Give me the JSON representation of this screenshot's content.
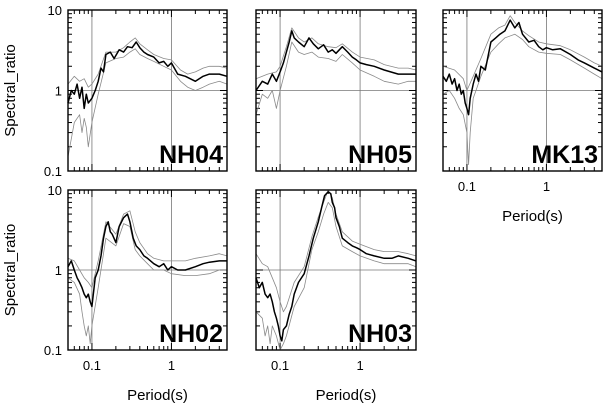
{
  "chart_data": [
    {
      "type": "line",
      "scale": "log-log",
      "station": "NH04",
      "xlabel": "",
      "ylabel": "Spectral_ratio",
      "xlim": [
        0.05,
        5
      ],
      "ylim": [
        0.1,
        10
      ],
      "xticks": [],
      "yticks": [
        "0.1",
        "1",
        "10"
      ],
      "grid": true,
      "series": [
        {
          "role": "mean",
          "x": [
            0.05,
            0.055,
            0.06,
            0.065,
            0.07,
            0.075,
            0.08,
            0.085,
            0.09,
            0.1,
            0.11,
            0.12,
            0.13,
            0.14,
            0.15,
            0.17,
            0.19,
            0.22,
            0.25,
            0.28,
            0.32,
            0.36,
            0.4,
            0.45,
            0.5,
            0.6,
            0.7,
            0.8,
            0.9,
            1.0,
            1.2,
            1.5,
            2.0,
            2.5,
            3.0,
            4.0,
            5.0
          ],
          "y": [
            0.7,
            1.0,
            0.9,
            1.2,
            0.8,
            1.1,
            0.6,
            0.9,
            0.7,
            0.8,
            1.0,
            1.3,
            1.9,
            1.7,
            2.8,
            3.0,
            2.5,
            3.2,
            3.0,
            3.5,
            3.4,
            4.0,
            3.4,
            3.0,
            2.8,
            2.6,
            2.2,
            2.3,
            2.0,
            2.2,
            1.6,
            1.5,
            1.3,
            1.5,
            1.6,
            1.6,
            1.5
          ]
        },
        {
          "role": "upper",
          "x": [
            0.05,
            0.06,
            0.07,
            0.08,
            0.09,
            0.1,
            0.12,
            0.15,
            0.2,
            0.25,
            0.3,
            0.35,
            0.4,
            0.5,
            0.6,
            0.8,
            1.0,
            1.3,
            1.6,
            2.0,
            2.5,
            3.0,
            4.0,
            5.0
          ],
          "y": [
            1.2,
            1.5,
            1.3,
            1.4,
            1.1,
            1.2,
            1.6,
            3.0,
            3.0,
            3.4,
            4.0,
            4.5,
            3.8,
            3.2,
            2.8,
            2.5,
            2.4,
            1.8,
            1.6,
            1.7,
            1.9,
            2.0,
            2.0,
            1.9
          ]
        },
        {
          "role": "lower",
          "x": [
            0.05,
            0.06,
            0.07,
            0.075,
            0.08,
            0.085,
            0.09,
            0.1,
            0.12,
            0.15,
            0.2,
            0.25,
            0.3,
            0.35,
            0.4,
            0.5,
            0.6,
            0.8,
            1.0,
            1.3,
            1.6,
            2.0,
            2.5,
            3.0,
            4.0,
            5.0
          ],
          "y": [
            0.15,
            0.4,
            0.5,
            0.3,
            0.45,
            0.35,
            0.2,
            0.4,
            0.9,
            2.2,
            2.5,
            2.6,
            3.0,
            3.3,
            2.8,
            2.5,
            2.3,
            2.0,
            1.8,
            1.3,
            1.1,
            1.0,
            1.1,
            1.2,
            1.3,
            1.2
          ]
        }
      ]
    },
    {
      "type": "line",
      "scale": "log-log",
      "station": "NH05",
      "xlabel": "",
      "ylabel": "",
      "xlim": [
        0.05,
        5
      ],
      "ylim": [
        0.1,
        10
      ],
      "xticks": [],
      "yticks": [],
      "grid": true,
      "series": [
        {
          "role": "mean",
          "x": [
            0.05,
            0.06,
            0.07,
            0.08,
            0.09,
            0.1,
            0.11,
            0.12,
            0.13,
            0.14,
            0.15,
            0.17,
            0.2,
            0.23,
            0.26,
            0.3,
            0.35,
            0.4,
            0.45,
            0.5,
            0.6,
            0.7,
            0.8,
            0.9,
            1.0,
            1.2,
            1.5,
            2.0,
            3.0,
            4.0,
            5.0
          ],
          "y": [
            1.0,
            1.3,
            1.2,
            1.6,
            1.3,
            1.7,
            2.2,
            3.0,
            4.0,
            5.5,
            4.5,
            4.0,
            3.5,
            4.5,
            3.8,
            3.3,
            3.7,
            3.0,
            3.2,
            2.9,
            3.5,
            3.0,
            2.6,
            2.4,
            2.2,
            2.1,
            2.0,
            1.8,
            1.6,
            1.6,
            1.6
          ]
        },
        {
          "role": "upper",
          "x": [
            0.05,
            0.07,
            0.09,
            0.1,
            0.12,
            0.14,
            0.17,
            0.2,
            0.25,
            0.3,
            0.4,
            0.5,
            0.6,
            0.8,
            1.0,
            1.5,
            2.0,
            3.0,
            4.0,
            5.0
          ],
          "y": [
            1.4,
            1.6,
            1.7,
            2.0,
            3.5,
            6.0,
            4.5,
            4.0,
            4.5,
            3.8,
            3.5,
            3.4,
            3.8,
            3.0,
            2.6,
            2.4,
            2.1,
            1.9,
            1.9,
            1.8
          ]
        },
        {
          "role": "lower",
          "x": [
            0.05,
            0.06,
            0.07,
            0.08,
            0.09,
            0.1,
            0.12,
            0.14,
            0.17,
            0.2,
            0.25,
            0.3,
            0.4,
            0.5,
            0.6,
            0.8,
            1.0,
            1.5,
            2.0,
            3.0,
            4.0,
            5.0
          ],
          "y": [
            0.5,
            0.9,
            0.8,
            1.0,
            0.6,
            1.0,
            2.0,
            4.0,
            3.0,
            2.8,
            3.0,
            2.6,
            2.5,
            2.3,
            2.8,
            2.2,
            1.8,
            1.5,
            1.3,
            1.2,
            1.3,
            1.3
          ]
        }
      ]
    },
    {
      "type": "line",
      "scale": "log-log",
      "station": "MK13",
      "xlabel": "Period(s)",
      "ylabel": "",
      "xlim": [
        0.05,
        5
      ],
      "ylim": [
        0.1,
        10
      ],
      "xticks": [
        "0.1",
        "1"
      ],
      "yticks": [],
      "grid": true,
      "series": [
        {
          "role": "mean",
          "x": [
            0.05,
            0.055,
            0.06,
            0.065,
            0.07,
            0.075,
            0.08,
            0.085,
            0.09,
            0.095,
            0.1,
            0.105,
            0.11,
            0.12,
            0.13,
            0.14,
            0.15,
            0.17,
            0.2,
            0.23,
            0.26,
            0.3,
            0.35,
            0.4,
            0.45,
            0.5,
            0.6,
            0.7,
            0.8,
            0.9,
            1.0,
            1.2,
            1.5,
            2.0,
            2.5,
            3.0,
            4.0,
            5.0
          ],
          "y": [
            1.5,
            1.3,
            1.6,
            1.2,
            1.4,
            1.0,
            1.2,
            0.9,
            1.0,
            0.7,
            0.6,
            0.5,
            0.8,
            1.2,
            1.6,
            1.3,
            2.0,
            1.8,
            4.0,
            4.5,
            5.0,
            5.5,
            7.5,
            6.0,
            7.0,
            5.0,
            4.0,
            4.2,
            3.5,
            3.2,
            3.4,
            3.2,
            3.3,
            2.8,
            2.4,
            2.2,
            1.9,
            1.7
          ]
        },
        {
          "role": "upper",
          "x": [
            0.05,
            0.07,
            0.09,
            0.1,
            0.12,
            0.15,
            0.2,
            0.25,
            0.3,
            0.35,
            0.4,
            0.5,
            0.6,
            0.8,
            1.0,
            1.5,
            2.0,
            3.0,
            4.0,
            5.0
          ],
          "y": [
            2.0,
            1.8,
            1.4,
            1.0,
            1.5,
            2.5,
            5.0,
            6.0,
            6.5,
            8.5,
            7.0,
            5.5,
            4.8,
            4.0,
            3.8,
            3.6,
            3.2,
            2.6,
            2.2,
            2.0
          ]
        },
        {
          "role": "lower",
          "x": [
            0.05,
            0.06,
            0.07,
            0.08,
            0.09,
            0.1,
            0.105,
            0.11,
            0.12,
            0.13,
            0.15,
            0.2,
            0.25,
            0.3,
            0.4,
            0.5,
            0.6,
            0.8,
            1.0,
            1.5,
            2.0,
            3.0,
            4.0,
            5.0
          ],
          "y": [
            0.9,
            1.0,
            0.8,
            0.6,
            0.5,
            0.3,
            0.12,
            0.3,
            0.8,
            1.0,
            1.5,
            3.0,
            3.8,
            4.5,
            5.0,
            4.3,
            3.5,
            3.0,
            2.9,
            2.8,
            2.4,
            1.9,
            1.6,
            1.4
          ]
        }
      ]
    },
    {
      "type": "line",
      "scale": "log-log",
      "station": "NH02",
      "xlabel": "Period(s)",
      "ylabel": "Spectral_ratio",
      "xlim": [
        0.05,
        5
      ],
      "ylim": [
        0.1,
        10
      ],
      "xticks": [
        "0.1",
        "1"
      ],
      "yticks": [
        "0.1",
        "1",
        "10"
      ],
      "grid": true,
      "series": [
        {
          "role": "mean",
          "x": [
            0.05,
            0.055,
            0.06,
            0.065,
            0.07,
            0.075,
            0.08,
            0.085,
            0.09,
            0.095,
            0.1,
            0.11,
            0.12,
            0.13,
            0.14,
            0.15,
            0.16,
            0.17,
            0.18,
            0.2,
            0.22,
            0.25,
            0.28,
            0.3,
            0.33,
            0.36,
            0.4,
            0.45,
            0.5,
            0.6,
            0.7,
            0.8,
            0.9,
            1.0,
            1.2,
            1.5,
            2.0,
            2.5,
            3.0,
            4.0,
            5.0
          ],
          "y": [
            1.1,
            1.3,
            1.0,
            0.8,
            0.7,
            0.6,
            0.5,
            0.45,
            0.5,
            0.4,
            0.35,
            0.8,
            1.0,
            1.5,
            2.5,
            3.5,
            4.0,
            3.0,
            2.8,
            2.2,
            3.5,
            4.5,
            5.0,
            4.0,
            2.5,
            2.0,
            1.8,
            1.5,
            1.4,
            1.2,
            1.1,
            1.2,
            1.0,
            1.1,
            1.0,
            1.0,
            1.1,
            1.2,
            1.25,
            1.3,
            1.3
          ]
        },
        {
          "role": "upper",
          "x": [
            0.05,
            0.06,
            0.07,
            0.08,
            0.09,
            0.1,
            0.12,
            0.15,
            0.2,
            0.25,
            0.3,
            0.35,
            0.4,
            0.5,
            0.6,
            0.8,
            1.0,
            1.5,
            2.0,
            3.0,
            4.0,
            5.0
          ],
          "y": [
            1.4,
            1.3,
            1.0,
            0.8,
            0.7,
            0.6,
            1.3,
            4.0,
            2.8,
            5.0,
            5.5,
            3.0,
            2.2,
            1.6,
            1.4,
            1.3,
            1.3,
            1.3,
            1.4,
            1.5,
            1.6,
            1.5
          ]
        },
        {
          "role": "lower",
          "x": [
            0.05,
            0.06,
            0.07,
            0.075,
            0.08,
            0.085,
            0.09,
            0.095,
            0.1,
            0.12,
            0.15,
            0.2,
            0.25,
            0.3,
            0.35,
            0.4,
            0.5,
            0.6,
            0.8,
            1.0,
            1.5,
            2.0,
            3.0,
            4.0,
            5.0
          ],
          "y": [
            0.8,
            0.7,
            0.5,
            0.3,
            0.2,
            0.15,
            0.2,
            0.12,
            0.2,
            0.6,
            2.5,
            2.0,
            3.8,
            3.5,
            1.8,
            1.5,
            1.2,
            1.0,
            1.0,
            0.9,
            0.85,
            0.85,
            0.9,
            1.0,
            1.0
          ]
        }
      ]
    },
    {
      "type": "line",
      "scale": "log-log",
      "station": "NH03",
      "xlabel": "Period(s)",
      "ylabel": "",
      "xlim": [
        0.05,
        5
      ],
      "ylim": [
        0.1,
        10
      ],
      "xticks": [
        "0.1",
        "1"
      ],
      "yticks": [],
      "grid": true,
      "series": [
        {
          "role": "mean",
          "x": [
            0.05,
            0.055,
            0.06,
            0.065,
            0.07,
            0.075,
            0.08,
            0.085,
            0.09,
            0.095,
            0.1,
            0.105,
            0.11,
            0.12,
            0.13,
            0.14,
            0.15,
            0.17,
            0.2,
            0.23,
            0.26,
            0.3,
            0.33,
            0.36,
            0.4,
            0.43,
            0.45,
            0.48,
            0.5,
            0.55,
            0.6,
            0.7,
            0.8,
            0.9,
            1.0,
            1.2,
            1.5,
            2.0,
            2.5,
            3.0,
            4.0,
            5.0
          ],
          "y": [
            0.8,
            0.6,
            0.7,
            0.5,
            0.45,
            0.5,
            0.4,
            0.3,
            0.25,
            0.2,
            0.15,
            0.13,
            0.18,
            0.2,
            0.28,
            0.35,
            0.5,
            0.7,
            0.9,
            1.5,
            2.5,
            4.0,
            6.0,
            8.5,
            9.5,
            9.0,
            7.0,
            6.0,
            4.5,
            3.5,
            2.5,
            2.2,
            2.0,
            1.9,
            1.8,
            1.6,
            1.5,
            1.4,
            1.4,
            1.5,
            1.4,
            1.3
          ]
        },
        {
          "role": "upper",
          "x": [
            0.05,
            0.06,
            0.07,
            0.08,
            0.09,
            0.1,
            0.11,
            0.12,
            0.15,
            0.2,
            0.25,
            0.3,
            0.35,
            0.4,
            0.45,
            0.5,
            0.6,
            0.8,
            1.0,
            1.5,
            2.0,
            3.0,
            4.0,
            5.0
          ],
          "y": [
            1.6,
            1.2,
            1.1,
            0.8,
            0.6,
            0.4,
            0.3,
            0.35,
            0.7,
            1.1,
            2.6,
            4.6,
            7.0,
            10.0,
            8.0,
            5.0,
            3.0,
            2.3,
            2.1,
            1.8,
            1.7,
            1.7,
            1.6,
            1.5
          ]
        },
        {
          "role": "lower",
          "x": [
            0.05,
            0.06,
            0.065,
            0.07,
            0.075,
            0.08,
            0.09,
            0.1,
            0.11,
            0.12,
            0.15,
            0.2,
            0.25,
            0.3,
            0.35,
            0.4,
            0.45,
            0.5,
            0.6,
            0.8,
            1.0,
            1.5,
            2.0,
            3.0,
            4.0,
            5.0
          ],
          "y": [
            0.3,
            0.25,
            0.15,
            0.2,
            0.12,
            0.2,
            0.15,
            0.1,
            0.12,
            0.15,
            0.35,
            0.6,
            1.8,
            3.0,
            5.0,
            7.0,
            6.0,
            3.5,
            2.0,
            1.7,
            1.5,
            1.3,
            1.2,
            1.2,
            1.2,
            1.1
          ]
        }
      ]
    }
  ]
}
